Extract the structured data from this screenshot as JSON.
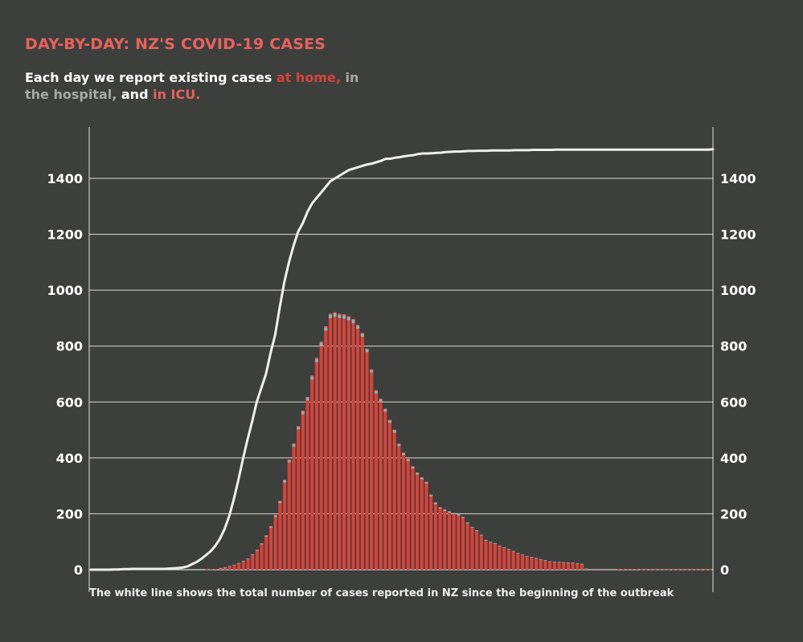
{
  "header": {
    "title": "DAY-BY-DAY: NZ'S COVID-19 CASES",
    "subtitle_prefix": "Each day we report existing cases ",
    "subtitle_home": "at home,",
    "subtitle_in": " in",
    "subtitle_hospital": "the hospital,",
    "subtitle_and": " and ",
    "subtitle_icu": "in ICU."
  },
  "footnote": "The white line shows the total number of cases reported in NZ since the beginning of the outbreak",
  "colors": {
    "background": "#3d3f3d",
    "home": "#d7433a",
    "hospital": "#a8a8a8",
    "icu": "#e8625c",
    "cumulative_line": "#eeeeee",
    "title": "#e8625c"
  },
  "chart_data": {
    "type": "bar",
    "ylim": [
      0,
      1500
    ],
    "yticks": [
      0,
      200,
      400,
      600,
      800,
      1000,
      1200,
      1400
    ],
    "ytick_labels": [
      "0",
      "200",
      "400",
      "600",
      "800",
      "1000",
      "1200",
      "1400"
    ],
    "grid": true,
    "axes": "left and right",
    "series": [
      {
        "name": "at home",
        "values": [
          0,
          0,
          0,
          0,
          0,
          0,
          0,
          0,
          0,
          0,
          0,
          0,
          0,
          0,
          0,
          0,
          0,
          0,
          0,
          0,
          0,
          0,
          0,
          0,
          0,
          1,
          2,
          3,
          5,
          8,
          12,
          17,
          22,
          30,
          38,
          52,
          68,
          90,
          118,
          150,
          188,
          238,
          312,
          384,
          440,
          502,
          556,
          605,
          680,
          743,
          800,
          855,
          900,
          905,
          900,
          898,
          892,
          882,
          862,
          833,
          778,
          705,
          630,
          600,
          565,
          525,
          490,
          442,
          410,
          388,
          362,
          340,
          323,
          308,
          262,
          234,
          218,
          210,
          204,
          198,
          194,
          185,
          165,
          150,
          138,
          122,
          104,
          97,
          92,
          84,
          78,
          72,
          65,
          58,
          52,
          47,
          44,
          40,
          36,
          32,
          29,
          28,
          27,
          26,
          25,
          25,
          22,
          20,
          3,
          2,
          2,
          2,
          2,
          2,
          2,
          2,
          2,
          2,
          2,
          2,
          1,
          1,
          1,
          1,
          1,
          1,
          1,
          1,
          1,
          1,
          1,
          1,
          1,
          1,
          1,
          1
        ]
      },
      {
        "name": "in the hospital",
        "values": [
          0,
          0,
          0,
          0,
          0,
          0,
          0,
          0,
          0,
          0,
          0,
          0,
          0,
          0,
          0,
          0,
          0,
          0,
          0,
          0,
          0,
          0,
          0,
          0,
          0,
          0,
          0,
          0,
          1,
          1,
          1,
          1,
          2,
          2,
          2,
          3,
          3,
          4,
          4,
          5,
          6,
          7,
          8,
          8,
          9,
          9,
          10,
          10,
          11,
          11,
          12,
          12,
          12,
          12,
          12,
          12,
          12,
          12,
          11,
          11,
          10,
          10,
          10,
          10,
          9,
          9,
          9,
          8,
          8,
          8,
          7,
          7,
          7,
          6,
          6,
          6,
          5,
          5,
          5,
          5,
          4,
          4,
          4,
          3,
          3,
          3,
          3,
          3,
          3,
          2,
          2,
          2,
          2,
          2,
          2,
          2,
          2,
          2,
          2,
          2,
          1,
          1,
          1,
          1,
          1,
          1,
          1,
          1,
          1,
          1,
          1,
          1,
          1,
          1,
          1,
          0,
          0,
          0,
          0,
          0,
          0,
          0,
          0,
          0,
          0,
          0,
          0,
          0,
          0,
          0,
          0,
          0,
          0,
          0,
          0,
          0
        ]
      },
      {
        "name": "in ICU",
        "values": [
          0,
          0,
          0,
          0,
          0,
          0,
          0,
          0,
          0,
          0,
          0,
          0,
          0,
          0,
          0,
          0,
          0,
          0,
          0,
          0,
          0,
          0,
          0,
          0,
          0,
          0,
          0,
          0,
          0,
          0,
          0,
          0,
          0,
          0,
          0,
          0,
          1,
          1,
          1,
          1,
          2,
          2,
          2,
          2,
          3,
          3,
          3,
          3,
          4,
          4,
          4,
          4,
          4,
          4,
          4,
          4,
          3,
          3,
          3,
          3,
          3,
          2,
          2,
          2,
          2,
          2,
          2,
          1,
          1,
          1,
          1,
          1,
          1,
          1,
          1,
          1,
          1,
          1,
          0,
          0,
          0,
          0,
          0,
          0,
          0,
          0,
          0,
          0,
          0,
          0,
          0,
          0,
          0,
          0,
          0,
          0,
          0,
          0,
          0,
          0,
          0,
          0,
          0,
          0,
          0,
          0,
          0,
          0,
          0,
          0,
          0,
          0,
          0,
          0,
          0,
          0,
          0,
          0,
          0,
          0,
          0,
          0,
          0,
          0,
          0,
          0,
          0,
          0,
          0,
          0,
          0,
          0,
          0,
          0,
          0,
          0
        ]
      },
      {
        "name": "total cases",
        "type": "line",
        "values": [
          0,
          0,
          0,
          0,
          0,
          1,
          1,
          2,
          2,
          3,
          3,
          3,
          3,
          3,
          3,
          3,
          3,
          4,
          5,
          6,
          8,
          12,
          20,
          28,
          39,
          52,
          66,
          85,
          110,
          145,
          190,
          250,
          320,
          395,
          465,
          530,
          600,
          650,
          700,
          775,
          840,
          940,
          1030,
          1100,
          1160,
          1210,
          1240,
          1280,
          1310,
          1330,
          1350,
          1370,
          1390,
          1400,
          1410,
          1420,
          1430,
          1435,
          1440,
          1445,
          1450,
          1453,
          1458,
          1463,
          1470,
          1470,
          1474,
          1476,
          1479,
          1481,
          1483,
          1487,
          1489,
          1489,
          1490,
          1491,
          1492,
          1494,
          1495,
          1496,
          1496,
          1497,
          1498,
          1498,
          1499,
          1499,
          1499,
          1500,
          1500,
          1500,
          1500,
          1500,
          1501,
          1501,
          1501,
          1501,
          1502,
          1502,
          1502,
          1502,
          1502,
          1503,
          1503,
          1503,
          1503,
          1503,
          1503,
          1503,
          1503,
          1503,
          1503,
          1503,
          1503,
          1503,
          1503,
          1503,
          1503,
          1503,
          1503,
          1503,
          1503,
          1503,
          1503,
          1503,
          1503,
          1503,
          1503,
          1503,
          1503,
          1503,
          1503,
          1503,
          1503,
          1503,
          1503,
          1504
        ]
      }
    ]
  }
}
